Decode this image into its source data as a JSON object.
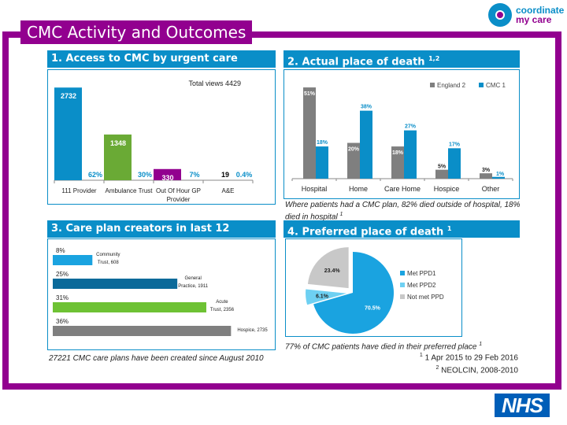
{
  "page_title": "CMC Activity and Outcomes",
  "logo": {
    "line1": "coordinate",
    "line2": "my care",
    "icon": "coordinate-my-care-logo"
  },
  "nhs_logo": "NHS",
  "colors": {
    "purple": "#92008f",
    "blue": "#0a8ec8",
    "green": "#6aaa35",
    "grey": "#7f7f7f",
    "dark_blue": "#0b6a9a",
    "light_blue": "#6ed0f2",
    "light_grey": "#c8c8c8"
  },
  "panels": {
    "p1": {
      "title": "1. Access to CMC by urgent care providers",
      "sup": "1"
    },
    "p2": {
      "title": "2. Actual place of death",
      "sup": "1,2",
      "caption": "Where patients had a CMC plan, 82% died outside of hospital, 18% died in hospital",
      "caption_sup": "1"
    },
    "p3": {
      "title": "3. Care plan creators in last 12 months",
      "caption": "27221 CMC care plans have been created since August 2010"
    },
    "p4": {
      "title": "4. Preferred place of death",
      "sup": "1",
      "caption": "77% of CMC patients have died in their preferred place",
      "caption_sup": "1"
    }
  },
  "footnotes": [
    {
      "sup": "1",
      "text": "1 Apr 2015 to 29 Feb 2016"
    },
    {
      "sup": "2",
      "text": "NEOLCIN, 2008-2010"
    }
  ],
  "chart_data": [
    {
      "type": "bar",
      "title": "1. Access to CMC by urgent care providers",
      "annotation": "Total views 4429",
      "categories": [
        "111 Provider",
        "Ambulance Trust",
        "Out Of Hour GP Provider",
        "A&E"
      ],
      "values": [
        2732,
        1348,
        330,
        19
      ],
      "percent_labels": [
        "62%",
        "30%",
        "7%",
        "0.4%"
      ],
      "bar_colors": [
        "#0a8ec8",
        "#6aaa35",
        "#92008f",
        "#0a8ec8"
      ],
      "ylim": [
        0,
        2900
      ]
    },
    {
      "type": "bar",
      "title": "2. Actual place of death",
      "categories": [
        "Hospital",
        "Home",
        "Care Home",
        "Hospice",
        "Other"
      ],
      "series": [
        {
          "name": "England",
          "sup": "2",
          "color": "#7f7f7f",
          "values": [
            51,
            20,
            18,
            5,
            3
          ],
          "labels": [
            "51%",
            "20%",
            "18%",
            "5%",
            "3%"
          ]
        },
        {
          "name": "CMC",
          "sup": "1",
          "color": "#0a8ec8",
          "values": [
            18,
            38,
            27,
            17,
            1
          ],
          "labels": [
            "18%",
            "38%",
            "27%",
            "17%",
            "1%"
          ]
        }
      ],
      "legend": "top-right",
      "ylim": [
        0,
        55
      ]
    },
    {
      "type": "bar",
      "orientation": "horizontal",
      "title": "3. Care plan creators in last 12 months",
      "categories": [
        "Community Trust",
        "General Practice",
        "Acute Trust",
        "Hospice"
      ],
      "values": [
        608,
        1911,
        2356,
        2735
      ],
      "percent_labels": [
        "8%",
        "25%",
        "31%",
        "36%"
      ],
      "bar_colors": [
        "#1aa3e0",
        "#0b6a9a",
        "#6ec234",
        "#7f7f7f"
      ],
      "xlim": [
        0,
        2900
      ]
    },
    {
      "type": "pie",
      "title": "4. Preferred place of death",
      "labels": [
        "Met PPD1",
        "Met PPD2",
        "Not met PPD"
      ],
      "values": [
        70.5,
        6.1,
        23.4
      ],
      "value_labels": [
        "70.5%",
        "6.1%",
        "23.4%"
      ],
      "colors": [
        "#1aa3e0",
        "#6ed0f2",
        "#c8c8c8"
      ],
      "legend": "right"
    }
  ]
}
